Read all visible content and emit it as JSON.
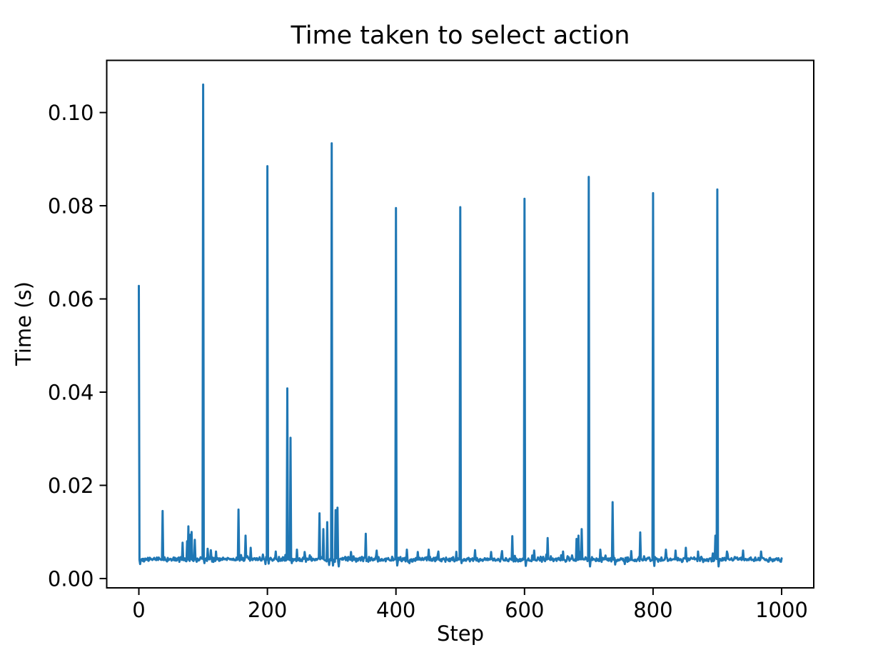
{
  "chart_data": {
    "type": "line",
    "title": "Time taken to select action",
    "xlabel": "Step",
    "ylabel": "Time (s)",
    "line_color": "#1f77b4",
    "line_width": 3,
    "axis_color": "#000000",
    "background_color": "#ffffff",
    "grid": false,
    "legend": "none",
    "n_steps": 1000,
    "xlim": [
      -50,
      1050
    ],
    "ylim": [
      -0.002,
      0.1112
    ],
    "x_ticks": [
      0,
      200,
      400,
      600,
      800,
      1000
    ],
    "x_tick_labels": [
      "0",
      "200",
      "400",
      "600",
      "800",
      "1000"
    ],
    "y_ticks": [
      0.0,
      0.02,
      0.04,
      0.06,
      0.08,
      0.1
    ],
    "y_tick_labels": [
      "0.00",
      "0.02",
      "0.04",
      "0.06",
      "0.08",
      "0.10"
    ],
    "baseline": {
      "mean": 0.0041,
      "noise_amp": 0.0006,
      "bump_prob": 0.05,
      "bump_amp": 0.0013,
      "seed": 42
    },
    "spikes": [
      [
        0,
        0.0628
      ],
      [
        37,
        0.0145
      ],
      [
        68,
        0.0077
      ],
      [
        75,
        0.008
      ],
      [
        77,
        0.0112
      ],
      [
        80,
        0.0094
      ],
      [
        82,
        0.01
      ],
      [
        87,
        0.0083
      ],
      [
        100,
        0.106
      ],
      [
        107,
        0.0064
      ],
      [
        112,
        0.0061
      ],
      [
        120,
        0.0058
      ],
      [
        155,
        0.0148
      ],
      [
        166,
        0.0092
      ],
      [
        174,
        0.0066
      ],
      [
        200,
        0.0885
      ],
      [
        213,
        0.0058
      ],
      [
        231,
        0.0408
      ],
      [
        236,
        0.0302
      ],
      [
        246,
        0.0062
      ],
      [
        258,
        0.0057
      ],
      [
        281,
        0.014
      ],
      [
        287,
        0.0106
      ],
      [
        293,
        0.0121
      ],
      [
        300,
        0.0934
      ],
      [
        306,
        0.0147
      ],
      [
        309,
        0.0152
      ],
      [
        330,
        0.0057
      ],
      [
        353,
        0.0096
      ],
      [
        370,
        0.006
      ],
      [
        400,
        0.0795
      ],
      [
        417,
        0.0062
      ],
      [
        434,
        0.0057
      ],
      [
        451,
        0.0062
      ],
      [
        466,
        0.0058
      ],
      [
        500,
        0.0797
      ],
      [
        523,
        0.0061
      ],
      [
        548,
        0.0057
      ],
      [
        565,
        0.0059
      ],
      [
        581,
        0.0091
      ],
      [
        600,
        0.0815
      ],
      [
        615,
        0.006
      ],
      [
        636,
        0.0087
      ],
      [
        660,
        0.0058
      ],
      [
        681,
        0.0085
      ],
      [
        684,
        0.0092
      ],
      [
        689,
        0.0106
      ],
      [
        700,
        0.0862
      ],
      [
        718,
        0.0062
      ],
      [
        737,
        0.0164
      ],
      [
        766,
        0.0059
      ],
      [
        780,
        0.0099
      ],
      [
        800,
        0.0827
      ],
      [
        820,
        0.0062
      ],
      [
        835,
        0.006
      ],
      [
        851,
        0.0066
      ],
      [
        870,
        0.0058
      ],
      [
        897,
        0.0092
      ],
      [
        900,
        0.0835
      ],
      [
        915,
        0.0058
      ],
      [
        940,
        0.006
      ],
      [
        968,
        0.0058
      ]
    ],
    "dips": [
      [
        2,
        0.0031
      ],
      [
        102,
        0.0033
      ],
      [
        197,
        0.0031
      ],
      [
        202,
        0.0032
      ],
      [
        238,
        0.0033
      ],
      [
        296,
        0.0029
      ],
      [
        302,
        0.0028
      ],
      [
        311,
        0.0026
      ],
      [
        402,
        0.0028
      ],
      [
        421,
        0.0033
      ],
      [
        502,
        0.0033
      ],
      [
        602,
        0.0027
      ],
      [
        702,
        0.0026
      ],
      [
        741,
        0.003
      ],
      [
        756,
        0.0031
      ],
      [
        802,
        0.0027
      ],
      [
        902,
        0.0026
      ]
    ]
  }
}
